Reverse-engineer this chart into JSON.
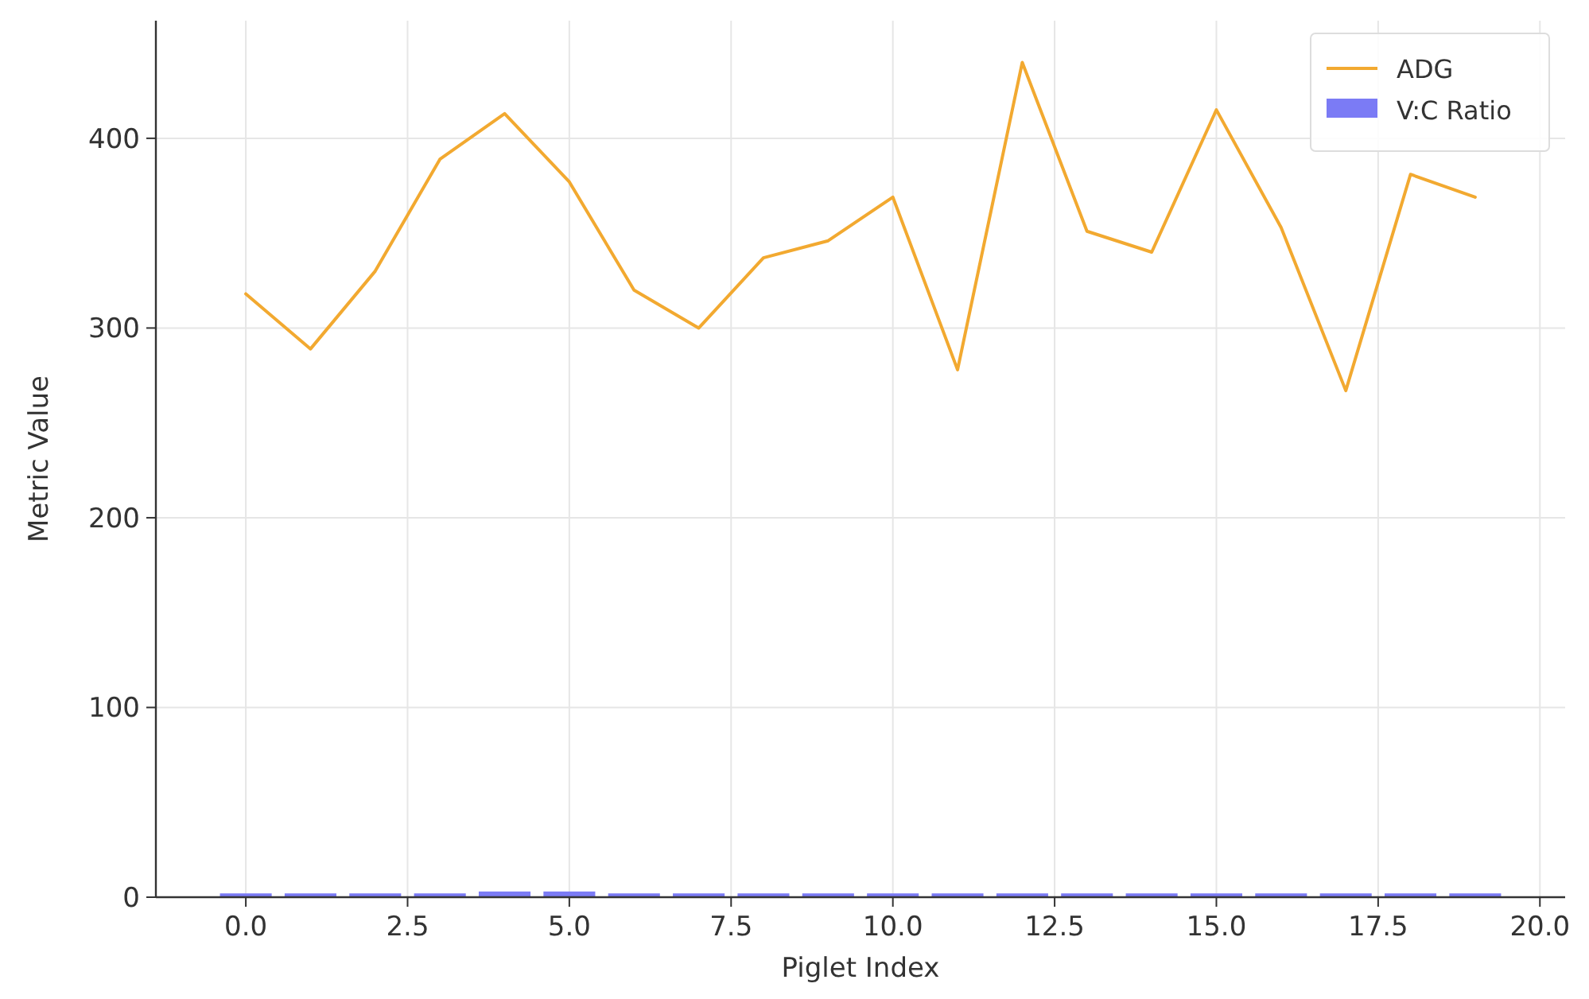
{
  "chart_data": {
    "type": "line",
    "xlabel": "Piglet Index",
    "ylabel": "Metric Value",
    "x": [
      0,
      1,
      2,
      3,
      4,
      5,
      6,
      7,
      8,
      9,
      10,
      11,
      12,
      13,
      14,
      15,
      16,
      17,
      18,
      19
    ],
    "series": [
      {
        "name": "ADG",
        "color": "#f2a930",
        "values": [
          318,
          289,
          330,
          389,
          413,
          377,
          320,
          300,
          337,
          346,
          369,
          278,
          440,
          351,
          340,
          415,
          353,
          267,
          381,
          369
        ]
      },
      {
        "name": "V:C Ratio",
        "type": "bar",
        "color": "#7b7bf5",
        "values": [
          2,
          2,
          2,
          2,
          3,
          3,
          2,
          2,
          2,
          2,
          2,
          2,
          2,
          2,
          2,
          2,
          2,
          2,
          2,
          2
        ]
      }
    ],
    "xlim": [
      -1.39,
      20.39
    ],
    "xticks": [
      {
        "value": 0,
        "label": "0.0"
      },
      {
        "value": 2.5,
        "label": "2.5"
      },
      {
        "value": 5,
        "label": "5.0"
      },
      {
        "value": 7.5,
        "label": "7.5"
      },
      {
        "value": 10,
        "label": "10.0"
      },
      {
        "value": 12.5,
        "label": "12.5"
      },
      {
        "value": 15,
        "label": "15.0"
      },
      {
        "value": 17.5,
        "label": "17.5"
      },
      {
        "value": 20,
        "label": "20.0"
      }
    ],
    "ylim": [
      0,
      462
    ],
    "yticks": [
      0,
      100,
      200,
      300,
      400
    ],
    "grid": true,
    "legend": "top right"
  }
}
